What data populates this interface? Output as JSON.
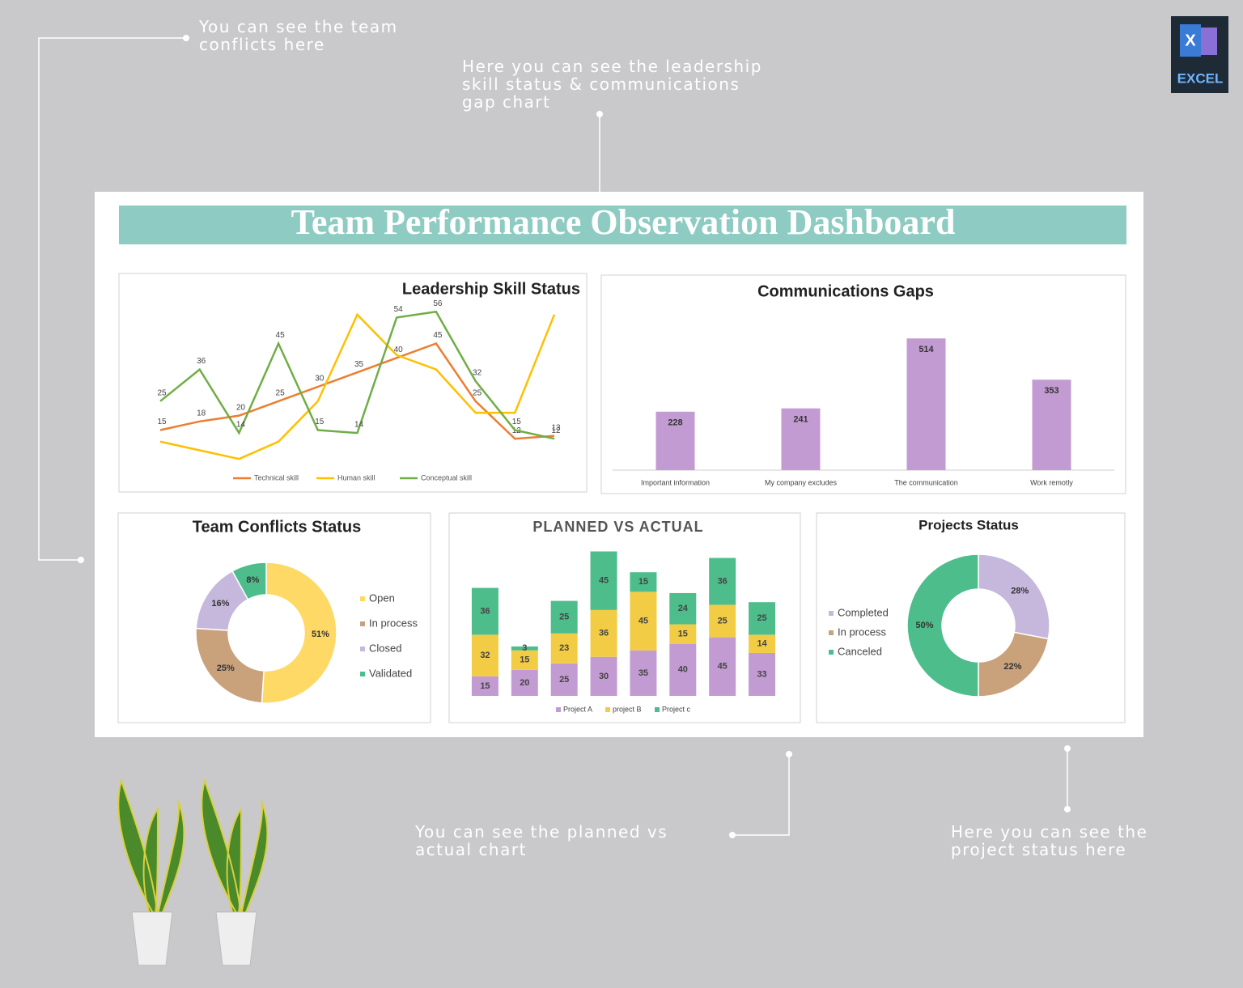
{
  "title": "Team Performance Observation Dashboard",
  "logo": {
    "mark": "X",
    "text": "EXCEL"
  },
  "annotations": [
    "You can see the team conflicts here",
    "Here you can see the leadership skill status & communications gap chart",
    "You can see the planned vs actual chart",
    "Here you can see the project status here"
  ],
  "chart_data": [
    {
      "type": "line",
      "title": "Leadership Skill Status",
      "ylim": [
        0,
        60
      ],
      "series": [
        {
          "name": "Technical skill",
          "color": "#ed7d31",
          "show_value_labels": true,
          "values": [
            15,
            18,
            20,
            25,
            30,
            35,
            40,
            45,
            25,
            12,
            13
          ]
        },
        {
          "name": "Human skill",
          "color": "#ffc000",
          "show_value_labels": false,
          "values": [
            11,
            8,
            5,
            11,
            25,
            55,
            41,
            36,
            21,
            21,
            55
          ]
        },
        {
          "name": "Conceptual skill",
          "color": "#70ad47",
          "show_value_labels": true,
          "values": [
            25,
            36,
            14,
            45,
            15,
            14,
            54,
            56,
            32,
            15,
            12
          ]
        }
      ]
    },
    {
      "type": "bar",
      "title": "Communications Gaps",
      "color": "#c39bd3",
      "ylim": [
        0,
        600
      ],
      "categories": [
        "Important information",
        "My company excludes",
        "The communication",
        "Work remotly"
      ],
      "values": [
        228,
        241,
        514,
        353
      ]
    },
    {
      "type": "donut",
      "title": "Team Conflicts Status",
      "legend": "right",
      "categories": [
        "Open",
        "In process",
        "Closed",
        "Validated"
      ],
      "colors": [
        "#ffd966",
        "#c9a27c",
        "#c5b8dc",
        "#4dbd8c"
      ],
      "values": [
        51,
        25,
        16,
        8
      ],
      "value_labels": [
        "51%",
        "25%",
        "16%",
        "8%"
      ]
    },
    {
      "type": "stacked_bar",
      "title": "PLANNED VS ACTUAL",
      "ylim": [
        0,
        120
      ],
      "categories": [
        null,
        null,
        null,
        null,
        null,
        null,
        null,
        null
      ],
      "series": [
        {
          "name": "Project A",
          "color": "#c39bd3",
          "values": [
            15,
            20,
            25,
            30,
            35,
            40,
            45,
            33
          ]
        },
        {
          "name": "project B",
          "color": "#f2cc44",
          "values": [
            32,
            15,
            23,
            36,
            45,
            15,
            25,
            14
          ]
        },
        {
          "name": "Project c",
          "color": "#4dbd8c",
          "values": [
            36,
            3,
            25,
            45,
            15,
            24,
            36,
            25
          ]
        }
      ]
    },
    {
      "type": "donut",
      "title": "Projects Status",
      "legend": "left",
      "categories": [
        "Completed",
        "In process",
        "Canceled"
      ],
      "colors": [
        "#c5b8dc",
        "#c9a27c",
        "#4dbd8c"
      ],
      "values": [
        28,
        22,
        50
      ],
      "value_labels": [
        "28%",
        "22%",
        "50%"
      ]
    }
  ]
}
